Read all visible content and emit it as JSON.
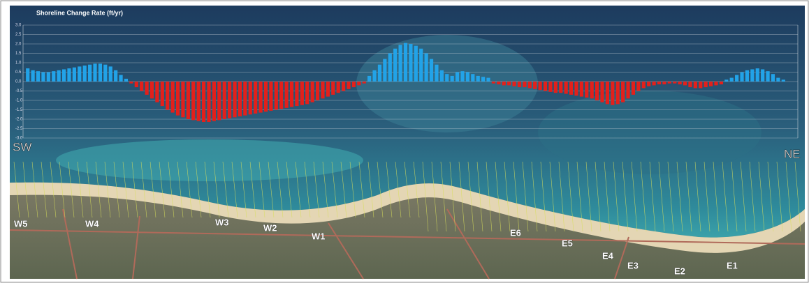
{
  "chart_data": {
    "type": "bar",
    "title": "Shoreline Change Rate (ft/yr)",
    "values": [
      0.7,
      0.6,
      0.55,
      0.5,
      0.5,
      0.55,
      0.6,
      0.65,
      0.7,
      0.75,
      0.8,
      0.85,
      0.9,
      0.95,
      0.95,
      0.9,
      0.8,
      0.6,
      0.35,
      0.15,
      -0.1,
      -0.3,
      -0.5,
      -0.7,
      -0.9,
      -1.1,
      -1.3,
      -1.5,
      -1.65,
      -1.8,
      -1.9,
      -2.0,
      -2.05,
      -2.1,
      -2.15,
      -2.15,
      -2.1,
      -2.05,
      -2.0,
      -1.95,
      -1.9,
      -1.85,
      -1.8,
      -1.75,
      -1.7,
      -1.65,
      -1.6,
      -1.55,
      -1.5,
      -1.45,
      -1.4,
      -1.35,
      -1.3,
      -1.25,
      -1.2,
      -1.1,
      -1.0,
      -0.9,
      -0.8,
      -0.7,
      -0.6,
      -0.5,
      -0.4,
      -0.3,
      -0.2,
      -0.1,
      0.3,
      0.6,
      0.9,
      1.2,
      1.5,
      1.75,
      1.95,
      2.05,
      2.0,
      1.9,
      1.75,
      1.5,
      1.2,
      0.9,
      0.6,
      0.4,
      0.3,
      0.5,
      0.55,
      0.5,
      0.4,
      0.3,
      0.25,
      0.2,
      -0.1,
      -0.15,
      -0.2,
      -0.2,
      -0.25,
      -0.3,
      -0.3,
      -0.35,
      -0.4,
      -0.45,
      -0.5,
      -0.55,
      -0.6,
      -0.6,
      -0.65,
      -0.7,
      -0.75,
      -0.8,
      -0.85,
      -0.9,
      -1.0,
      -1.1,
      -1.2,
      -1.25,
      -1.2,
      -1.1,
      -0.9,
      -0.7,
      -0.5,
      -0.35,
      -0.25,
      -0.2,
      -0.15,
      -0.15,
      -0.1,
      -0.1,
      -0.15,
      -0.2,
      -0.3,
      -0.35,
      -0.35,
      -0.3,
      -0.25,
      -0.2,
      -0.15,
      0.1,
      0.2,
      0.35,
      0.5,
      0.6,
      0.65,
      0.7,
      0.65,
      0.55,
      0.4,
      0.2,
      0.1
    ],
    "color": "#22a3e8",
    "negative_color": "#e3201b",
    "ylim": [
      -3,
      3
    ],
    "yticks": [
      {
        "value": 3,
        "label": "3.0"
      },
      2.5,
      {
        "value": 2,
        "label": "2.0"
      },
      1.5,
      {
        "value": 1,
        "label": "1.0"
      },
      0.5,
      {
        "value": 0,
        "label": "0.0"
      },
      -0.5,
      {
        "value": -1,
        "label": "-1.0"
      },
      -1.5,
      {
        "value": -2,
        "label": "-2.0"
      },
      -2.5,
      {
        "value": -3,
        "label": "-3.0"
      }
    ],
    "grid": true,
    "direction_labels": [
      "SW",
      "NE"
    ],
    "stations": [
      "W5",
      "W4",
      "W3",
      "W2",
      "W1",
      "E6",
      "E5",
      "E4",
      "E3",
      "E2",
      "E1"
    ]
  }
}
